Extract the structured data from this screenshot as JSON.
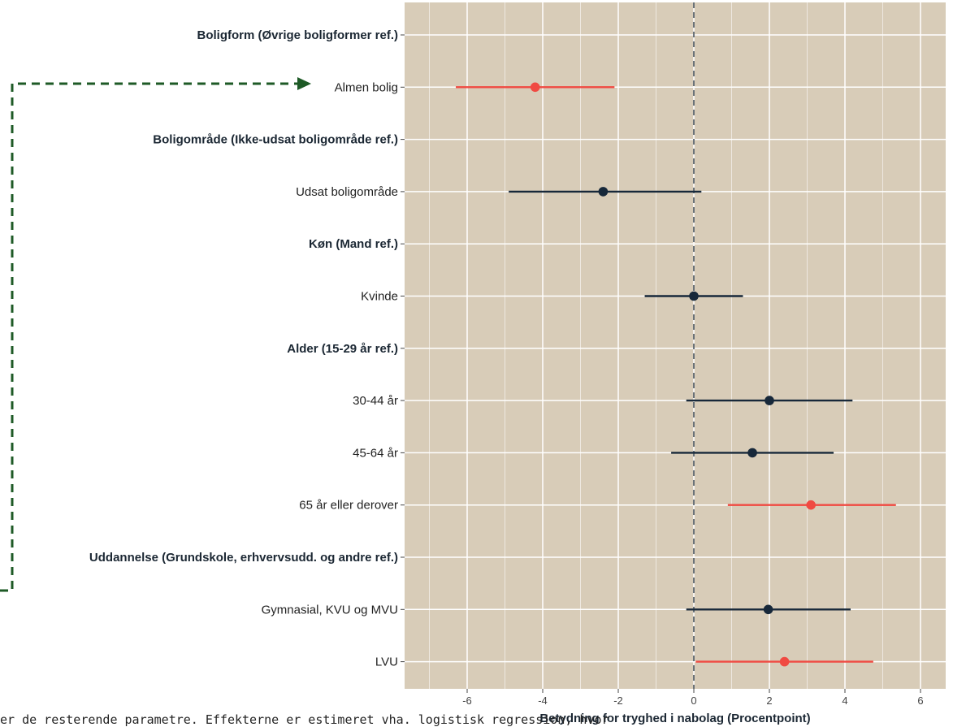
{
  "chart_data": {
    "type": "scatter",
    "style": "forest-plot (point estimate with horizontal confidence interval)",
    "xlabel": "Betydning for tryghed i nabolag (Procentpoint)",
    "xlim": [
      -7.6,
      6.5
    ],
    "xticks": [
      -6,
      -4,
      -2,
      0,
      2,
      4,
      6
    ],
    "reference_line_x": 0,
    "grid": true,
    "rows": [
      {
        "label": "Boligform (Øvrige boligformer ref.)",
        "header": true
      },
      {
        "label": "Almen bolig",
        "estimate": -4.2,
        "ci_low": -6.3,
        "ci_high": -2.1,
        "significant": true
      },
      {
        "label": "Boligområde (Ikke-udsat boligområde ref.)",
        "header": true
      },
      {
        "label": "Udsat boligområde",
        "estimate": -2.4,
        "ci_low": -4.9,
        "ci_high": 0.2,
        "significant": false
      },
      {
        "label": "Køn (Mand ref.)",
        "header": true
      },
      {
        "label": "Kvinde",
        "estimate": 0.0,
        "ci_low": -1.3,
        "ci_high": 1.3,
        "significant": false
      },
      {
        "label": "Alder (15-29 år ref.)",
        "header": true
      },
      {
        "label": "30-44 år",
        "estimate": 2.0,
        "ci_low": -0.2,
        "ci_high": 4.2,
        "significant": false
      },
      {
        "label": "45-64 år",
        "estimate": 1.55,
        "ci_low": -0.6,
        "ci_high": 3.7,
        "significant": false
      },
      {
        "label": "65 år eller derover",
        "estimate": 3.1,
        "ci_low": 0.9,
        "ci_high": 5.35,
        "significant": true
      },
      {
        "label": "Uddannelse (Grundskole, erhvervsudd. og andre ref.)",
        "header": true
      },
      {
        "label": "Gymnasial, KVU og MVU",
        "estimate": 1.97,
        "ci_low": -0.2,
        "ci_high": 4.15,
        "significant": false
      },
      {
        "label": "LVU",
        "estimate": 2.4,
        "ci_low": 0.05,
        "ci_high": 4.75,
        "significant": true
      }
    ],
    "colors": {
      "panel_background": "#d8ccb8",
      "grid": "#ffffff",
      "significant": "#f04a42",
      "not_significant": "#17283a",
      "reference_line": "#4a5560",
      "annotation_arrow": "#1e5a26"
    }
  },
  "footnote": "er de resterende parametre. Effekterne er estimeret vha. logistisk regression, hvor"
}
